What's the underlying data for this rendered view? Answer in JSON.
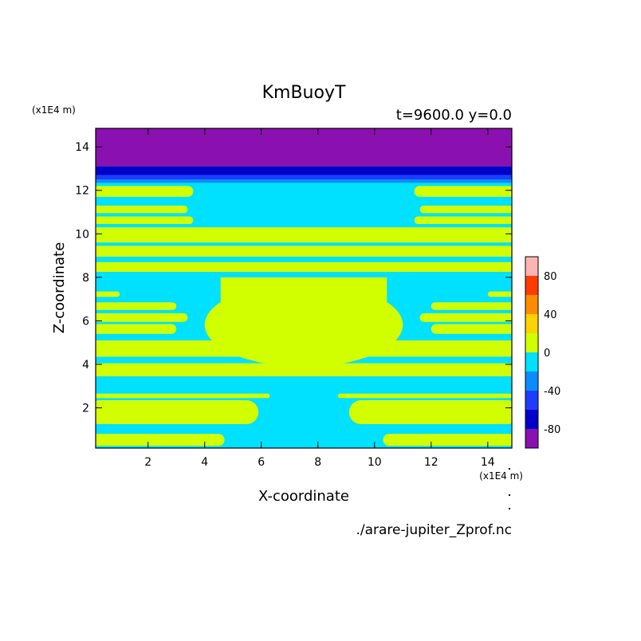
{
  "chart_data": {
    "type": "heatmap",
    "title": "KmBuoyT",
    "subtitle": "t=9600.0 y=0.0",
    "xlabel": "X-coordinate",
    "ylabel": "Z-coordinate",
    "x_unit": "(x1E4 m)",
    "y_unit": "(x1E4 m)",
    "source_file": "./arare-jupiter_Zprof.nc",
    "xlim": [
      0.15,
      14.85
    ],
    "ylim": [
      0.15,
      14.85
    ],
    "x_ticks": [
      2,
      4,
      6,
      8,
      10,
      12,
      14
    ],
    "y_ticks": [
      2,
      4,
      6,
      8,
      10,
      12,
      14
    ],
    "colorbar": {
      "levels": [
        -100,
        -80,
        -60,
        -40,
        -20,
        0,
        20,
        40,
        60,
        80,
        100
      ],
      "colors": [
        "#8b10b0",
        "#0000c8",
        "#1e3cff",
        "#0a8cff",
        "#00e0ff",
        "#d2ff00",
        "#ffd200",
        "#ff8c00",
        "#ff3c00",
        "#ffb4b4"
      ],
      "tick_labels": [
        "80",
        "40",
        "0",
        "-40",
        "-80"
      ],
      "tick_values": [
        80,
        40,
        0,
        -40,
        -80
      ]
    },
    "fields": {
      "background_value": -10,
      "top_layers": [
        {
          "z_min": 13.1,
          "z_max": 14.85,
          "value": -90
        },
        {
          "z_min": 12.7,
          "z_max": 13.1,
          "value": -70
        },
        {
          "z_min": 12.5,
          "z_max": 12.7,
          "value": -50
        },
        {
          "z_min": 12.35,
          "z_max": 12.5,
          "value": -30
        }
      ],
      "positive_bands": [
        {
          "z_min": 11.7,
          "z_max": 12.2,
          "inner_x": 3.6,
          "value": 10
        },
        {
          "z_min": 10.95,
          "z_max": 11.3,
          "inner_x": 3.4,
          "value": 10
        },
        {
          "z_min": 10.45,
          "z_max": 10.8,
          "inner_x": 3.6,
          "value": 10
        },
        {
          "z_min": 9.6,
          "z_max": 10.3,
          "inner_x": 0,
          "value": 10
        },
        {
          "z_min": 8.95,
          "z_max": 9.45,
          "inner_x": 0,
          "value": 10
        },
        {
          "z_min": 8.25,
          "z_max": 8.7,
          "inner_x": 0,
          "value": 10
        },
        {
          "z_min": 7.1,
          "z_max": 7.35,
          "inner_x": 1.0,
          "value": 10
        },
        {
          "z_min": 6.5,
          "z_max": 6.85,
          "inner_x": 3.0,
          "value": 10
        },
        {
          "z_min": 5.95,
          "z_max": 6.35,
          "inner_x": 3.4,
          "value": 10
        },
        {
          "z_min": 5.4,
          "z_max": 5.85,
          "inner_x": 3.0,
          "value": 10
        },
        {
          "z_min": 4.35,
          "z_max": 5.1,
          "inner_x": 0,
          "value": 10
        },
        {
          "z_min": 3.45,
          "z_max": 4.05,
          "inner_x": 0,
          "value": 10
        },
        {
          "z_min": 2.45,
          "z_max": 2.65,
          "inner_x": 6.3,
          "value": 10
        },
        {
          "z_min": 1.25,
          "z_max": 2.35,
          "inner_x": 5.9,
          "value": 10
        },
        {
          "z_min": 0.25,
          "z_max": 0.8,
          "inner_x": 4.7,
          "value": 10
        }
      ],
      "central_region": {
        "x_min": 4.0,
        "x_max": 11.0,
        "z_min": 4.0,
        "z_max": 8.0,
        "value": 10
      }
    }
  }
}
